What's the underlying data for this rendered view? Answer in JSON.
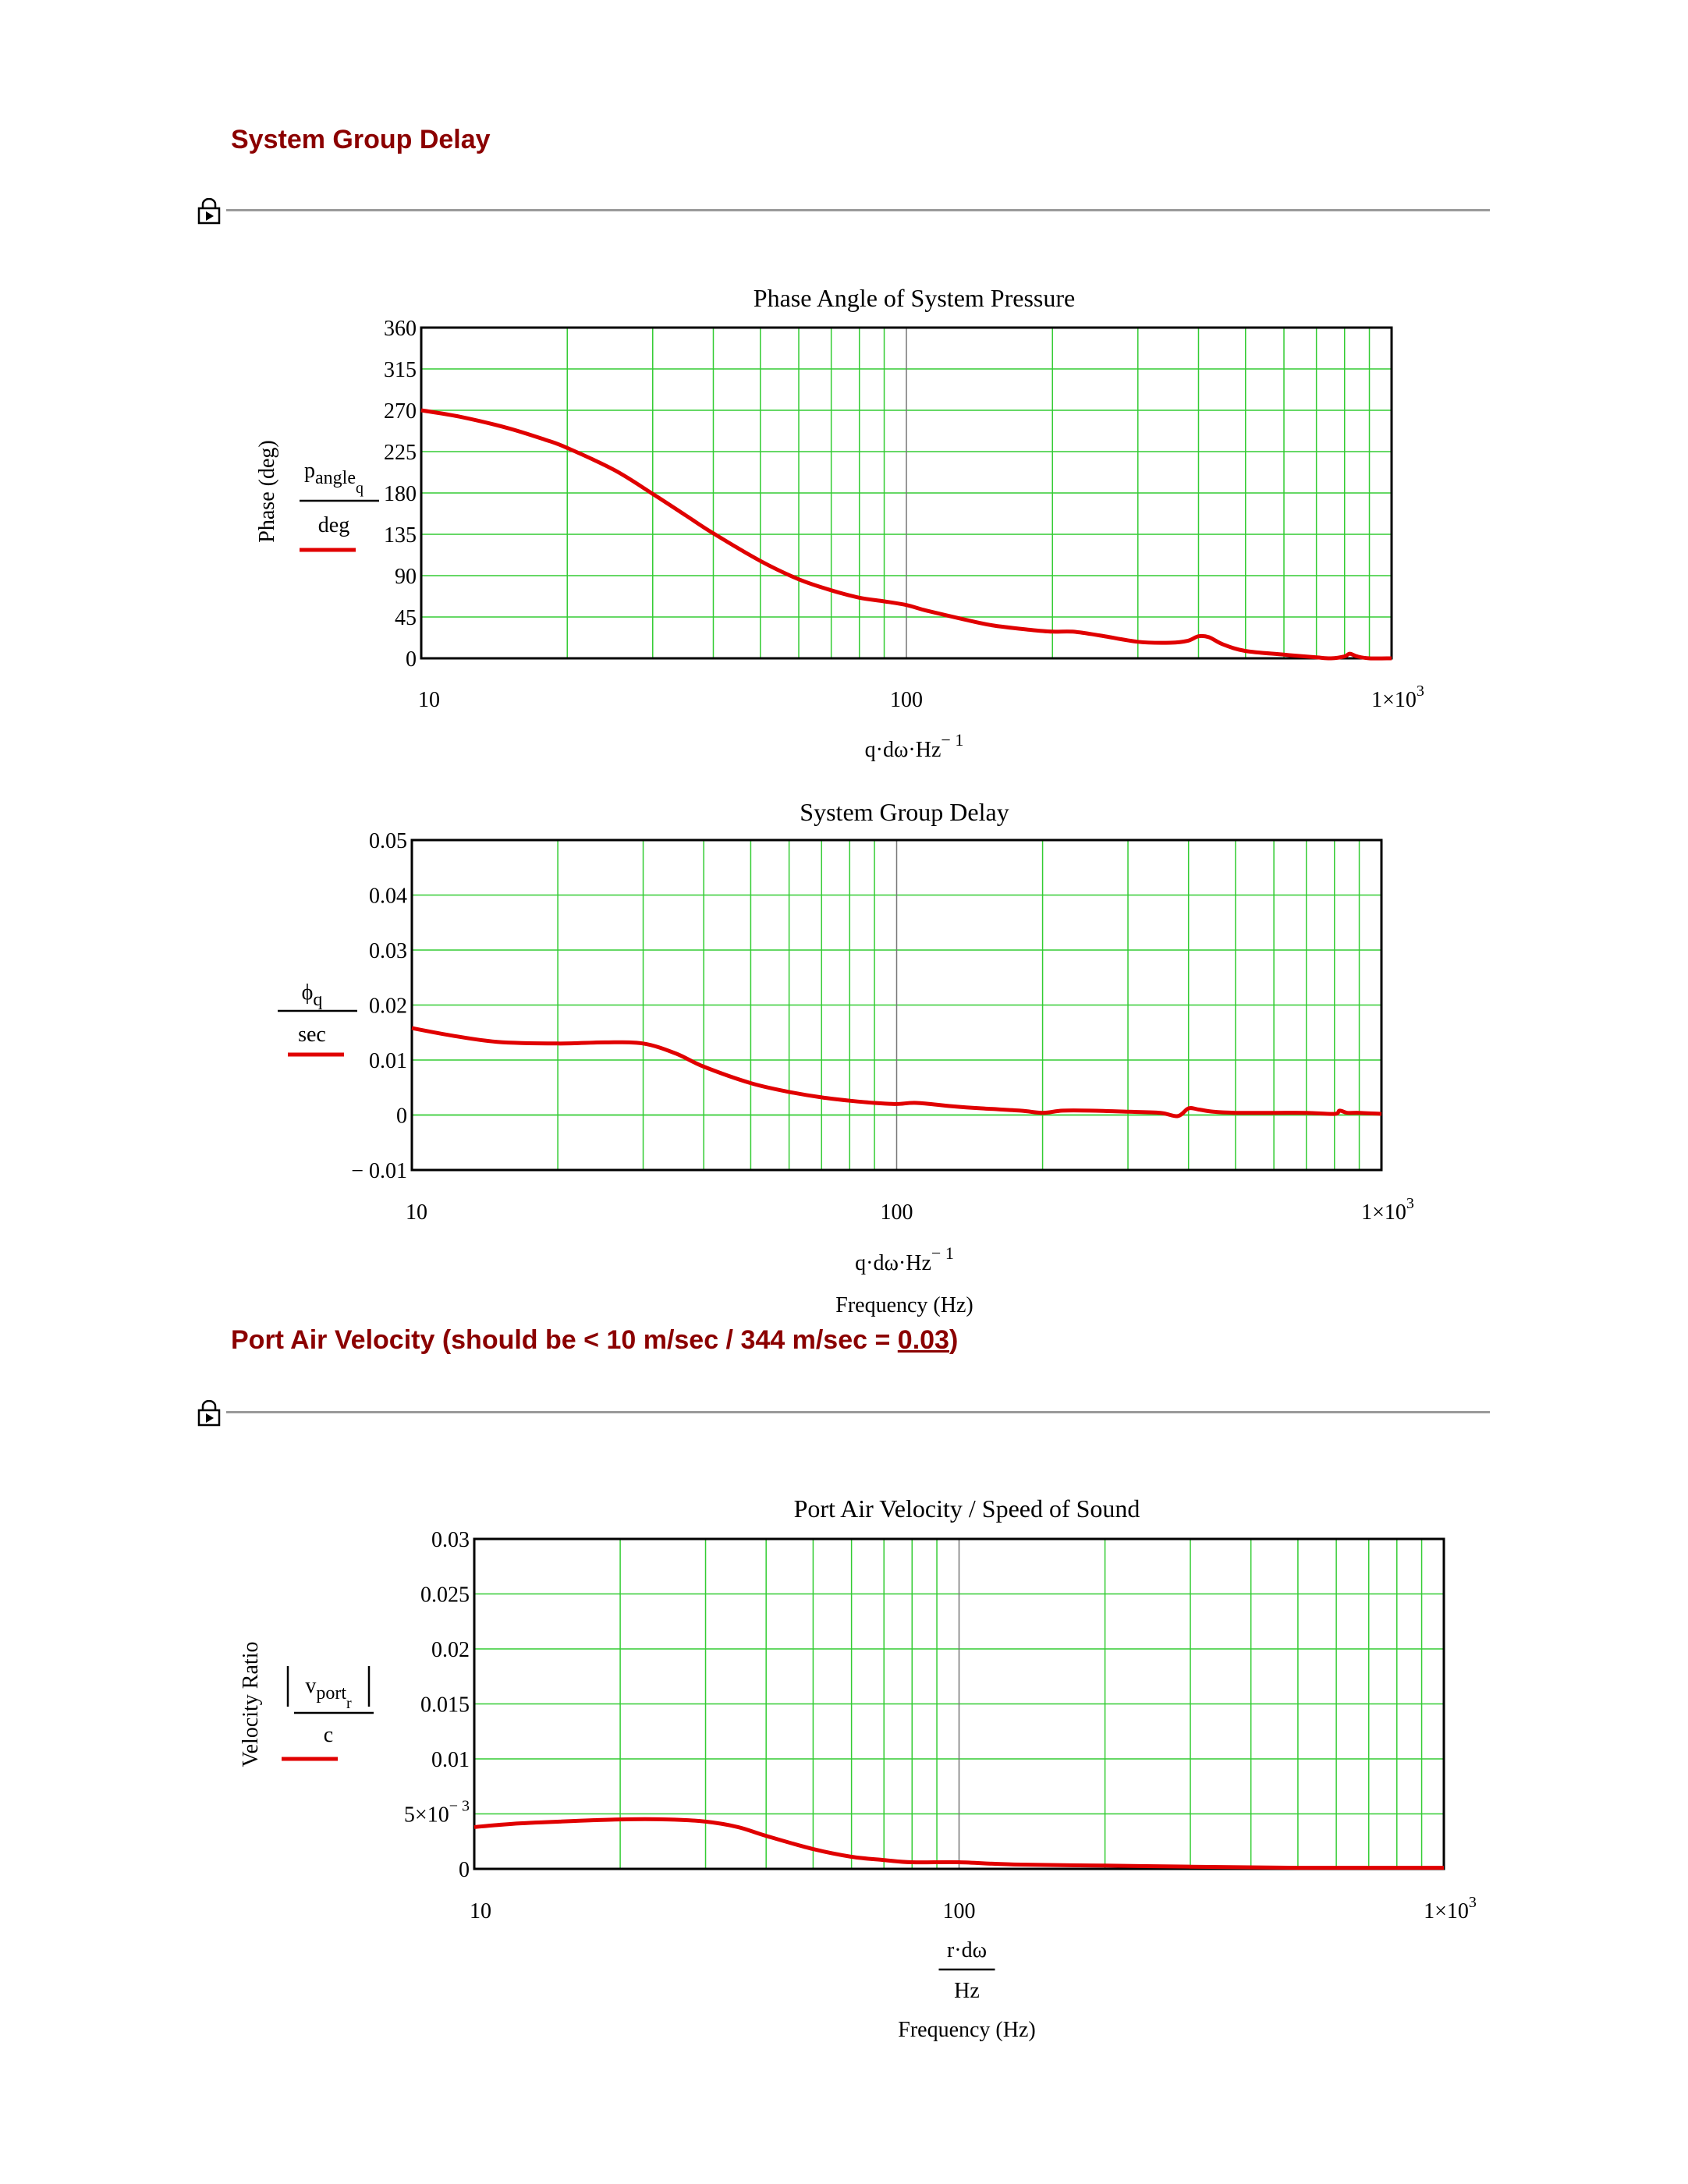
{
  "headings": {
    "group_delay": "System Group Delay",
    "port_velocity_prefix": "Port Air Velocity (should be < 10 m/sec / 344 m/sec = ",
    "port_velocity_value": "0.03",
    "port_velocity_suffix": ")"
  },
  "icons": {
    "region_lock": "lock-icon"
  },
  "colors": {
    "trace": "#e00000",
    "grid": "#33cc33",
    "heading": "#8b0000",
    "rule": "#9a9a9a"
  },
  "chart_data": [
    {
      "type": "line",
      "title": "Phase Angle of System Pressure",
      "ylabel": "Phase (deg)",
      "legend_expr": {
        "numerator": "p",
        "num_sub": "angle",
        "num_sub2": "q",
        "denominator": "deg"
      },
      "xlabel_expr": {
        "base": "q·dω·Hz",
        "exp": "− 1"
      },
      "xlabel": "",
      "x_scale": "log",
      "xlim": [
        10,
        1000
      ],
      "ylim": [
        0,
        360
      ],
      "x_ticks": [
        {
          "value": 10,
          "label": "10"
        },
        {
          "value": 100,
          "label": "100"
        },
        {
          "value": 1000,
          "label": "1×10",
          "exp": "3"
        }
      ],
      "y_ticks": [
        {
          "value": 0,
          "label": "0"
        },
        {
          "value": 45,
          "label": "45"
        },
        {
          "value": 90,
          "label": "90"
        },
        {
          "value": 135,
          "label": "135"
        },
        {
          "value": 180,
          "label": "180"
        },
        {
          "value": 225,
          "label": "225"
        },
        {
          "value": 270,
          "label": "270"
        },
        {
          "value": 315,
          "label": "315"
        },
        {
          "value": 360,
          "label": "360"
        }
      ],
      "grid": true,
      "series": [
        {
          "color": "#e00000",
          "x": [
            10,
            12,
            15,
            18,
            20,
            25,
            30,
            35,
            40,
            50,
            60,
            70,
            80,
            90,
            100,
            110,
            130,
            150,
            180,
            200,
            220,
            250,
            300,
            350,
            380,
            400,
            420,
            450,
            500,
            600,
            700,
            750,
            800,
            820,
            850,
            900,
            1000
          ],
          "y": [
            270,
            263,
            251,
            238,
            229,
            205,
            179,
            156,
            136,
            106,
            86,
            74,
            66,
            62,
            58,
            52,
            43,
            36,
            31,
            29,
            29,
            25,
            18,
            17,
            19,
            24,
            23,
            15,
            8,
            4,
            1,
            0,
            2,
            5,
            2,
            0,
            0
          ]
        }
      ]
    },
    {
      "type": "line",
      "title": "System Group Delay",
      "ylabel": "",
      "legend_expr": {
        "numerator": "ϕ",
        "num_sub": "q",
        "denominator": "sec"
      },
      "xlabel_expr": {
        "base": "q·dω·Hz",
        "exp": "− 1"
      },
      "xlabel": "Frequency (Hz)",
      "x_scale": "log",
      "xlim": [
        10,
        1000
      ],
      "ylim": [
        -0.01,
        0.05
      ],
      "x_ticks": [
        {
          "value": 10,
          "label": "10"
        },
        {
          "value": 100,
          "label": "100"
        },
        {
          "value": 1000,
          "label": "1×10",
          "exp": "3"
        }
      ],
      "y_ticks": [
        {
          "value": -0.01,
          "label": "− 0.01"
        },
        {
          "value": 0,
          "label": "0"
        },
        {
          "value": 0.01,
          "label": "0.01"
        },
        {
          "value": 0.02,
          "label": "0.02"
        },
        {
          "value": 0.03,
          "label": "0.03"
        },
        {
          "value": 0.04,
          "label": "0.04"
        },
        {
          "value": 0.05,
          "label": "0.05"
        }
      ],
      "grid": true,
      "series": [
        {
          "color": "#e00000",
          "x": [
            10,
            12,
            15,
            20,
            25,
            30,
            35,
            40,
            50,
            60,
            70,
            80,
            90,
            100,
            110,
            130,
            150,
            180,
            200,
            220,
            250,
            300,
            350,
            380,
            400,
            420,
            450,
            500,
            600,
            700,
            800,
            820,
            850,
            900,
            1000
          ],
          "y": [
            0.0158,
            0.0145,
            0.0133,
            0.013,
            0.0132,
            0.013,
            0.0112,
            0.0088,
            0.0058,
            0.0042,
            0.0032,
            0.0026,
            0.0022,
            0.002,
            0.0022,
            0.0016,
            0.0012,
            0.0008,
            0.0004,
            0.0008,
            0.0008,
            0.0006,
            0.0004,
            -0.0002,
            0.0012,
            0.001,
            0.0006,
            0.0004,
            0.0004,
            0.0004,
            0.0002,
            0.0008,
            0.0004,
            0.0004,
            0.0002
          ]
        }
      ]
    },
    {
      "type": "line",
      "title": "Port Air Velocity / Speed of Sound",
      "ylabel": "Velocity Ratio",
      "legend_expr": {
        "numerator": "v",
        "num_sub": "port",
        "num_sub2": "r",
        "denominator": "c",
        "abs": true
      },
      "xlabel_expr": {
        "numerator": "r·dω",
        "denominator": "Hz"
      },
      "xlabel": "Frequency (Hz)",
      "x_scale": "log",
      "xlim": [
        10,
        1000
      ],
      "ylim": [
        0,
        0.03
      ],
      "x_ticks": [
        {
          "value": 10,
          "label": "10"
        },
        {
          "value": 100,
          "label": "100"
        },
        {
          "value": 1000,
          "label": "1×10",
          "exp": "3"
        }
      ],
      "y_ticks": [
        {
          "value": 0,
          "label": "0"
        },
        {
          "value": 0.005,
          "label": "5×10",
          "exp": "− 3"
        },
        {
          "value": 0.01,
          "label": "0.01"
        },
        {
          "value": 0.015,
          "label": "0.015"
        },
        {
          "value": 0.02,
          "label": "0.02"
        },
        {
          "value": 0.025,
          "label": "0.025"
        },
        {
          "value": 0.03,
          "label": "0.03"
        }
      ],
      "grid": true,
      "series": [
        {
          "color": "#e00000",
          "x": [
            10,
            12,
            15,
            20,
            25,
            30,
            35,
            40,
            50,
            60,
            70,
            80,
            100,
            130,
            200,
            300,
            500,
            1000
          ],
          "y": [
            0.0038,
            0.0041,
            0.0043,
            0.0045,
            0.0045,
            0.0043,
            0.0038,
            0.003,
            0.0018,
            0.0011,
            0.0008,
            0.0006,
            0.0006,
            0.0004,
            0.0003,
            0.0002,
            0.0001,
            0.0001
          ]
        }
      ]
    }
  ]
}
